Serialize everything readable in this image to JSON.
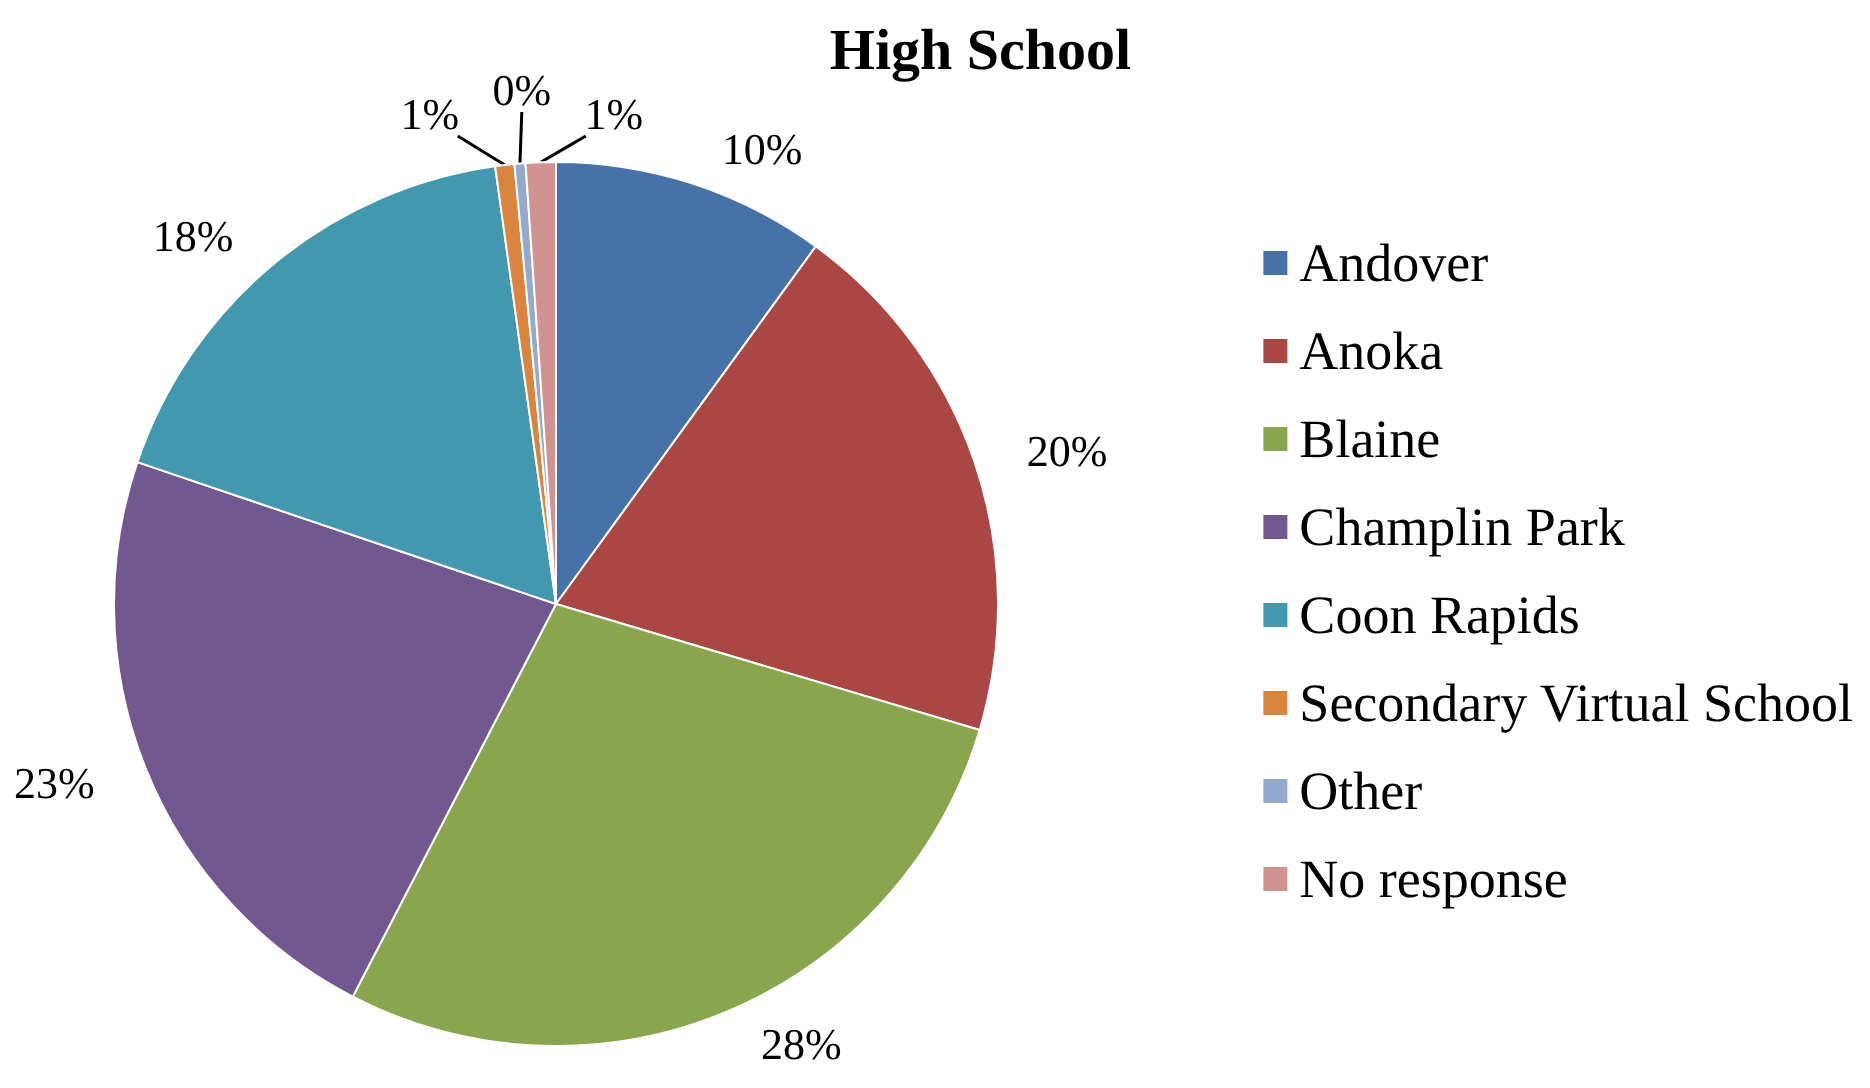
{
  "chart_data": {
    "type": "pie",
    "title": "High School",
    "categories": [
      "Andover",
      "Anoka",
      "Blaine",
      "Champlin Park",
      "Coon Rapids",
      "Secondary Virtual School",
      "Other",
      "No response"
    ],
    "values": [
      10.0,
      19.6,
      28.0,
      22.6,
      17.6,
      0.7,
      0.4,
      1.1
    ],
    "value_labels": [
      "10%",
      "20%",
      "28%",
      "23%",
      "18%",
      "1%",
      "0%",
      "1%"
    ],
    "colors": [
      "#4572a7",
      "#aa4643",
      "#89a54e",
      "#71588f",
      "#4198af",
      "#db843d",
      "#93a9cf",
      "#d19392"
    ],
    "legend": "right"
  }
}
